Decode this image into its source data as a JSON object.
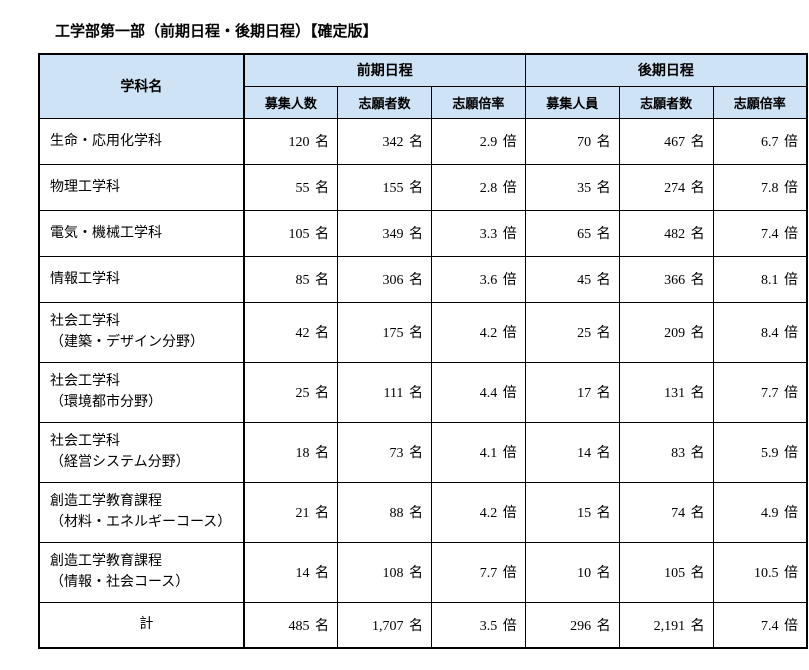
{
  "title": "工学部第一部（前期日程・後期日程）【確定版】",
  "columns": {
    "dept": "学科名",
    "group1": "前期日程",
    "group2": "後期日程",
    "sub1": "募集人数",
    "sub2": "志願者数",
    "sub3": "志願倍率",
    "sub4": "募集人員",
    "sub5": "志願者数",
    "sub6": "志願倍率"
  },
  "unit_people": "名",
  "unit_times": "倍",
  "rows": [
    {
      "dept": "生命・応用化学科",
      "v1": "120",
      "v2": "342",
      "v3": "2.9",
      "v4": "70",
      "v5": "467",
      "v6": "6.7",
      "multiline": false
    },
    {
      "dept": "物理工学科",
      "v1": "55",
      "v2": "155",
      "v3": "2.8",
      "v4": "35",
      "v5": "274",
      "v6": "7.8",
      "multiline": false
    },
    {
      "dept": "電気・機械工学科",
      "v1": "105",
      "v2": "349",
      "v3": "3.3",
      "v4": "65",
      "v5": "482",
      "v6": "7.4",
      "multiline": false
    },
    {
      "dept": "情報工学科",
      "v1": "85",
      "v2": "306",
      "v3": "3.6",
      "v4": "45",
      "v5": "366",
      "v6": "8.1",
      "multiline": false
    },
    {
      "dept": "社会工学科",
      "dept2": "（建築・デザイン分野）",
      "v1": "42",
      "v2": "175",
      "v3": "4.2",
      "v4": "25",
      "v5": "209",
      "v6": "8.4",
      "multiline": true
    },
    {
      "dept": "社会工学科",
      "dept2": "（環境都市分野）",
      "v1": "25",
      "v2": "111",
      "v3": "4.4",
      "v4": "17",
      "v5": "131",
      "v6": "7.7",
      "multiline": true
    },
    {
      "dept": "社会工学科",
      "dept2": "（経営システム分野）",
      "v1": "18",
      "v2": "73",
      "v3": "4.1",
      "v4": "14",
      "v5": "83",
      "v6": "5.9",
      "multiline": true
    },
    {
      "dept": "創造工学教育課程",
      "dept2": "（材料・エネルギーコース）",
      "v1": "21",
      "v2": "88",
      "v3": "4.2",
      "v4": "15",
      "v5": "74",
      "v6": "4.9",
      "multiline": true
    },
    {
      "dept": "創造工学教育課程",
      "dept2": "（情報・社会コース）",
      "v1": "14",
      "v2": "108",
      "v3": "7.7",
      "v4": "10",
      "v5": "105",
      "v6": "10.5",
      "multiline": true
    }
  ],
  "total": {
    "label": "計",
    "v1": "485",
    "v2": "1,707",
    "v3": "3.5",
    "v4": "296",
    "v5": "2,191",
    "v6": "7.4"
  },
  "colors": {
    "header_bg": "#cee3f6",
    "border": "#000000",
    "text": "#000000",
    "background": "#ffffff"
  }
}
